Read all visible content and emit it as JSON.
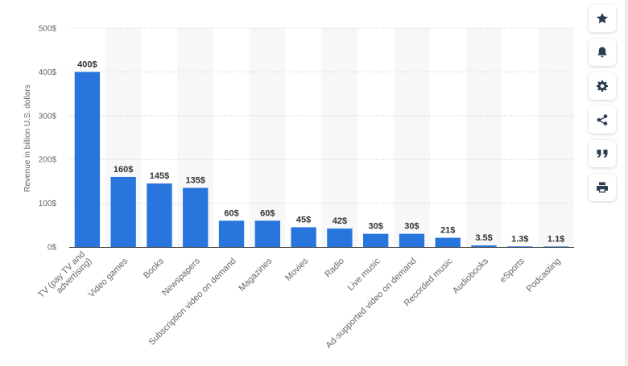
{
  "chart_data": {
    "type": "bar",
    "ylabel": "Revenue in billion U.S. dollars",
    "ylim": [
      0,
      500
    ],
    "yticks": [
      0,
      100,
      200,
      300,
      400,
      500
    ],
    "ytick_suffix": "$",
    "categories": [
      [
        "TV (pay TV and",
        "advertising)"
      ],
      [
        "Video games"
      ],
      [
        "Books"
      ],
      [
        "Newspapers"
      ],
      [
        "Subscription video on demand"
      ],
      [
        "Magazines"
      ],
      [
        "Movies"
      ],
      [
        "Radio"
      ],
      [
        "Live music"
      ],
      [
        "Ad-supported video on demand"
      ],
      [
        "Recorded music"
      ],
      [
        "Audiobooks"
      ],
      [
        "eSports"
      ],
      [
        "Podcasting"
      ]
    ],
    "values": [
      400,
      160,
      145,
      135,
      60,
      60,
      45,
      42,
      30,
      30,
      21,
      3.5,
      1.3,
      1.1
    ],
    "data_labels": [
      "400$",
      "160$",
      "145$",
      "135$",
      "60$",
      "60$",
      "45$",
      "42$",
      "30$",
      "30$",
      "21$",
      "3.5$",
      "1.3$",
      "1.1$"
    ],
    "bar_color": "#2876dd",
    "band_color": "#f7f7f7",
    "grid": true
  },
  "toolbar": [
    {
      "icon": "star-icon",
      "name": "favorite-button"
    },
    {
      "icon": "bell-icon",
      "name": "notification-button"
    },
    {
      "icon": "gear-icon",
      "name": "settings-button"
    },
    {
      "icon": "share-icon",
      "name": "share-button"
    },
    {
      "icon": "quote-icon",
      "name": "cite-button"
    },
    {
      "icon": "print-icon",
      "name": "print-button"
    }
  ]
}
